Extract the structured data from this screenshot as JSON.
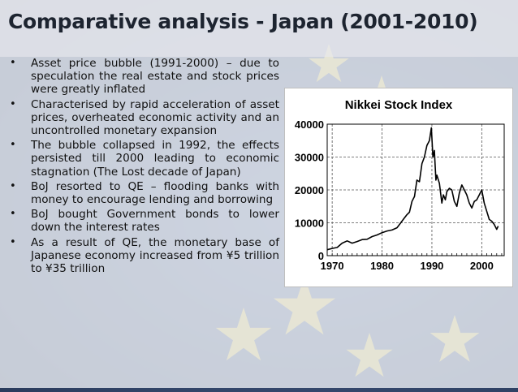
{
  "slide": {
    "title": "Comparative analysis - Japan (2001-2010)",
    "bullets": [
      "Asset price bubble (1991-2000) – due to speculation the real estate and stock prices were greatly inflated",
      "Characterised by rapid acceleration of asset prices, overheated economic activity and an uncontrolled monetary expansion",
      "The bubble collapsed in 1992, the effects persisted till 2000 leading to economic stagnation (The Lost decade of Japan)",
      "BoJ resorted to QE – flooding banks with money to encourage lending and borrowing",
      "BoJ bought Government bonds to lower down the interest rates",
      "As a result of QE, the monetary base of Japanese economy increased from ¥5 trillion to ¥35 trillion"
    ],
    "bullet_symbol": "•"
  },
  "chart_data": {
    "type": "line",
    "title": "Nikkei Stock Index",
    "xlabel": "",
    "ylabel": "",
    "xlim": [
      1969,
      2004.5
    ],
    "ylim": [
      0,
      40000
    ],
    "x_ticks": [
      1970,
      1980,
      1990,
      2000
    ],
    "y_ticks": [
      0,
      10000,
      20000,
      30000,
      40000
    ],
    "grid": true,
    "legend": "none",
    "series": [
      {
        "color": "#000000",
        "x": [
          1969,
          1970,
          1971,
          1972,
          1973,
          1974,
          1975,
          1976,
          1977,
          1978,
          1979,
          1980,
          1981,
          1982,
          1983,
          1984,
          1984.5,
          1985,
          1985.5,
          1986,
          1986.5,
          1987,
          1987.5,
          1988,
          1988.5,
          1989,
          1989.5,
          1989.9,
          1990.2,
          1990.5,
          1990.8,
          1991,
          1991.5,
          1992,
          1992.3,
          1992.7,
          1993,
          1993.5,
          1994,
          1994.5,
          1995,
          1995.5,
          1996,
          1996.5,
          1997,
          1997.5,
          1998,
          1998.5,
          1999,
          1999.5,
          2000,
          2000.5,
          2001,
          2001.5,
          2002,
          2002.5,
          2003,
          2003.3
        ],
        "y": [
          1800,
          2200,
          2500,
          3800,
          4500,
          3800,
          4300,
          4900,
          5000,
          5800,
          6300,
          7000,
          7500,
          7800,
          8500,
          10500,
          11500,
          12500,
          13200,
          16500,
          18000,
          23000,
          22500,
          28000,
          30000,
          33500,
          35000,
          38900,
          30000,
          32000,
          23000,
          24500,
          22000,
          16000,
          18500,
          17000,
          19500,
          20500,
          20000,
          16500,
          15000,
          19000,
          21500,
          20000,
          18500,
          16000,
          14500,
          16500,
          17000,
          18500,
          20000,
          16000,
          13500,
          11000,
          10500,
          9500,
          8000,
          9000
        ]
      }
    ]
  }
}
